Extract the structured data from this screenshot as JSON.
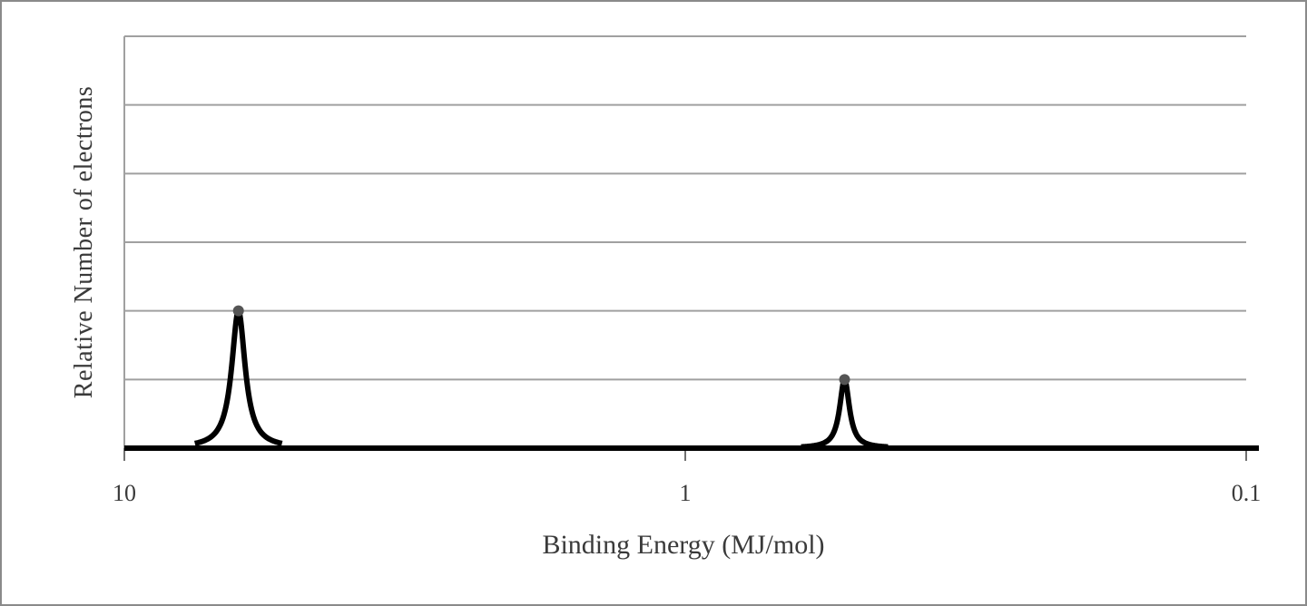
{
  "chart_data": {
    "type": "line",
    "x_label": "Binding Energy (MJ/mol)",
    "y_label": "Relative Number of electrons",
    "x": [
      6.26,
      0.52
    ],
    "values": [
      2,
      1
    ],
    "color": "#000000",
    "xlim": [
      10,
      0.1
    ],
    "xticks": [
      10,
      1,
      0.1
    ],
    "xlog": true,
    "ylim": [
      0,
      6
    ],
    "yticks": [
      0,
      1,
      2,
      3,
      4,
      5,
      6
    ],
    "grid": true
  }
}
